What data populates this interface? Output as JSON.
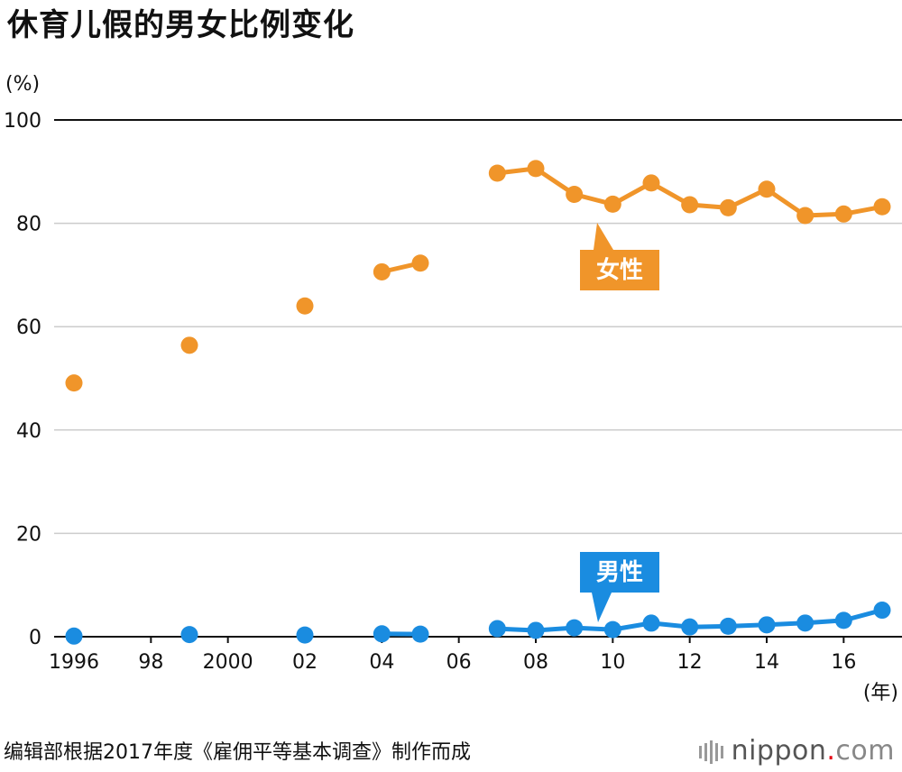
{
  "title": "休育儿假的男女比例变化",
  "source": "编辑部根据2017年度《雇佣平等基本调查》制作而成",
  "brand": {
    "name": "nippon",
    "dot": ".",
    "tld": "com"
  },
  "colors": {
    "female": "#f0952a",
    "male": "#1a8ce0",
    "grid": "#cccccc",
    "axis": "#111111"
  },
  "chart_data": {
    "type": "line",
    "title": "休育儿假的男女比例变化",
    "ylabel": "(%)",
    "xlabel": "(年)",
    "ylim": [
      0,
      100
    ],
    "yticks": [
      0,
      20,
      40,
      60,
      80,
      100
    ],
    "xlim": [
      1996,
      2017
    ],
    "xticks": [
      {
        "value": 1996,
        "label": "1996"
      },
      {
        "value": 1998,
        "label": "98"
      },
      {
        "value": 2000,
        "label": "2000"
      },
      {
        "value": 2002,
        "label": "02"
      },
      {
        "value": 2004,
        "label": "04"
      },
      {
        "value": 2006,
        "label": "06"
      },
      {
        "value": 2008,
        "label": "08"
      },
      {
        "value": 2010,
        "label": "10"
      },
      {
        "value": 2012,
        "label": "12"
      },
      {
        "value": 2014,
        "label": "14"
      },
      {
        "value": 2016,
        "label": "16"
      }
    ],
    "series": [
      {
        "name": "女性",
        "key": "female",
        "x": [
          1996,
          1999,
          2002,
          2004,
          2005,
          2007,
          2008,
          2009,
          2010,
          2011,
          2012,
          2013,
          2014,
          2015,
          2016,
          2017
        ],
        "values": [
          49.1,
          56.4,
          64.0,
          70.6,
          72.3,
          89.7,
          90.6,
          85.6,
          83.7,
          87.8,
          83.6,
          83.0,
          86.6,
          81.5,
          81.8,
          83.2
        ],
        "segments": [
          [
            0
          ],
          [
            1
          ],
          [
            2
          ],
          [
            3,
            4
          ],
          [
            5,
            6,
            7,
            8,
            9,
            10,
            11,
            12,
            13,
            14,
            15
          ]
        ]
      },
      {
        "name": "男性",
        "key": "male",
        "x": [
          1996,
          1999,
          2002,
          2004,
          2005,
          2007,
          2008,
          2009,
          2010,
          2011,
          2012,
          2013,
          2014,
          2015,
          2016,
          2017
        ],
        "values": [
          0.12,
          0.42,
          0.33,
          0.56,
          0.5,
          1.56,
          1.23,
          1.72,
          1.38,
          2.63,
          1.89,
          2.03,
          2.3,
          2.65,
          3.16,
          5.14
        ],
        "segments": [
          [
            0
          ],
          [
            1
          ],
          [
            2
          ],
          [
            3,
            4
          ],
          [
            5,
            6,
            7,
            8,
            9,
            10,
            11,
            12,
            13,
            14,
            15
          ]
        ]
      }
    ]
  }
}
